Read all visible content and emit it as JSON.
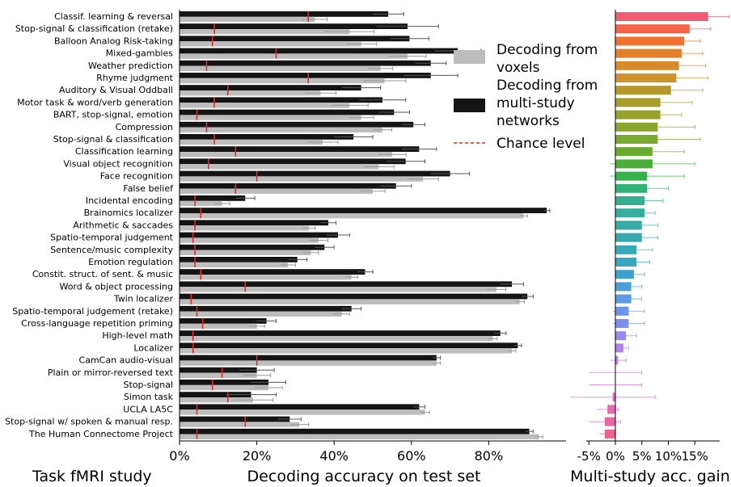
{
  "chart_data": [
    {
      "type": "bar",
      "orientation": "horizontal",
      "row_label_title": "Task fMRI study",
      "xlabel": "Decoding accuracy on test set",
      "xlim": [
        0,
        100
      ],
      "xticks": [
        0,
        20,
        40,
        60,
        80
      ],
      "xtick_labels": [
        "0%",
        "20%",
        "40%",
        "60%",
        "80%"
      ],
      "legend": [
        {
          "label": "Decoding from voxels",
          "color": "#bdbdbd",
          "kind": "box"
        },
        {
          "label": "Decoding from multi-study networks",
          "color": "#141414",
          "kind": "box"
        },
        {
          "label": "Chance level",
          "color": "#e8261f",
          "kind": "dashed-line"
        }
      ],
      "legend_placement": "top-right",
      "categories": [
        "Classif. learning & reversal",
        "Stop-signal & classification (retake)",
        "Balloon Analog Risk-taking",
        "Mixed-gambles",
        "Weather prediction",
        "Rhyme judgment",
        "Auditory & Visual Oddball",
        "Motor task & word/verb generation",
        "BART, stop-signal, emotion",
        "Compression",
        "Stop-signal & classification",
        "Classification learning",
        "Visual object recognition",
        "Face recognition",
        "False belief",
        "Incidental encoding",
        "Brainomics localizer",
        "Arithmetic & saccades",
        "Spatio-temporal judgement",
        "Sentence/music complexity",
        "Emotion regulation",
        "Constit. struct. of sent. & music",
        "Word & object processing",
        "Twin localizer",
        "Spatio-temporal judgement (retake)",
        "Cross-language repetition priming",
        "High-level math",
        "Localizer",
        "CamCan audio-visual",
        "Plain or mirror-reversed text",
        "Stop-signal",
        "Simon task",
        "UCLA LA5C",
        "Stop-signal w/ spoken & manual resp.",
        "The Human Connectome Project"
      ],
      "series": [
        {
          "name": "Decoding from multi-study networks",
          "color": "#141414",
          "values": [
            54,
            59,
            59.5,
            72,
            65,
            65,
            47,
            52.5,
            55.5,
            60.5,
            45,
            62,
            58.5,
            70,
            56,
            17,
            95,
            38.5,
            41,
            37.5,
            30.5,
            48,
            86,
            90,
            44.5,
            22.5,
            83,
            87.5,
            66.5,
            20,
            23,
            18.5,
            62,
            28.5,
            90.5
          ],
          "errors": [
            4,
            8,
            5,
            6,
            4,
            7,
            5,
            6,
            4,
            3,
            5,
            4.5,
            5,
            5,
            4,
            2.5,
            0.8,
            2,
            3,
            2.5,
            2.5,
            2,
            3,
            1.5,
            2.5,
            2.5,
            1.5,
            1,
            1,
            4.5,
            4.5,
            6.5,
            1.5,
            3,
            1
          ]
        },
        {
          "name": "Decoding from voxels",
          "color": "#bdbdbd",
          "values": [
            35,
            44,
            47,
            59,
            52,
            53,
            36.5,
            44,
            47,
            52.5,
            37,
            55,
            51.5,
            63,
            50,
            11,
            89,
            33.5,
            36,
            34,
            28,
            44.5,
            82,
            88,
            42,
            20,
            81,
            86,
            66.5,
            20,
            23,
            19,
            63.5,
            31,
            93
          ]
        }
      ],
      "chance_level": [
        33.3,
        9,
        8.5,
        25,
        7,
        33.3,
        12.5,
        9,
        4.5,
        7,
        9,
        14.5,
        7.5,
        20,
        14.5,
        4,
        5.5,
        4,
        3.5,
        4,
        4,
        5.5,
        17,
        3,
        4.5,
        6,
        3.5,
        3.5,
        20,
        11,
        8.5,
        12.5,
        4.5,
        17,
        4.5
      ],
      "grid": false
    },
    {
      "type": "bar",
      "orientation": "horizontal",
      "xlabel": "Multi-study acc. gain",
      "xlim": [
        -7,
        18
      ],
      "xticks": [
        -5,
        0,
        5,
        10,
        15
      ],
      "xtick_labels": [
        "-5%",
        "0%",
        "5%",
        "10%",
        "15%"
      ],
      "values": [
        17.5,
        14,
        13,
        12.5,
        12,
        11.5,
        10.5,
        8.5,
        8.5,
        8,
        8,
        7,
        7,
        6,
        6,
        5.5,
        5.5,
        5,
        5,
        4,
        4,
        3.5,
        3,
        3,
        2.5,
        2.5,
        2,
        1.5,
        0.5,
        0,
        0,
        -0.5,
        -1.5,
        -2,
        -2
      ],
      "errors": [
        4,
        4,
        3,
        4,
        5,
        6,
        6,
        6,
        4,
        7,
        8,
        6,
        8,
        7,
        4,
        3.5,
        2,
        3,
        3,
        3,
        2.5,
        2,
        2,
        2,
        3,
        3,
        2,
        1,
        1.5,
        5,
        5,
        8,
        2,
        3,
        1
      ],
      "colors": [
        "#f45b73",
        "#f4624a",
        "#f3712e",
        "#e27f29",
        "#d78a2a",
        "#cf922a",
        "#b7982a",
        "#a69e2a",
        "#9aa12b",
        "#8aa52d",
        "#7aa92e",
        "#68ac2f",
        "#4aaf39",
        "#32b34b",
        "#33b277",
        "#34b08f",
        "#35ae9d",
        "#36aca6",
        "#36aaaf",
        "#36a8b8",
        "#37a6c0",
        "#3aa2cd",
        "#4a9fd9",
        "#5c9ae3",
        "#6c95ea",
        "#7c8ff0",
        "#978bf0",
        "#ad84ee",
        "#c07ce9",
        "#d173e3",
        "#dd6cd8",
        "#e368c8",
        "#e766b5",
        "#ea63a2",
        "#ee6190"
      ],
      "grid": false
    }
  ]
}
